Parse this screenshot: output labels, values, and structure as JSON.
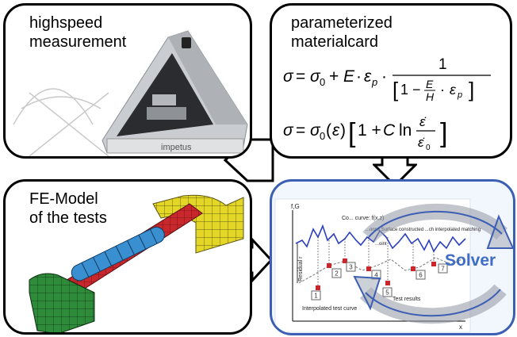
{
  "panels": {
    "measurement": {
      "title_line1": "highspeed",
      "title_line2": "measurement",
      "device_label": "impetus"
    },
    "materialcard": {
      "title_line1": "parameterized",
      "title_line2": "materialcard"
    },
    "fe_model": {
      "title_line1": "FE-Model",
      "title_line2": "of the tests"
    },
    "solver": {
      "label": "Solver",
      "inset": {
        "y_axis_label": "f,G",
        "residual_label": "Residual r",
        "curve_label": "Co... curve: f(x,z)",
        "surface_label": "...onse Surface constructed ...ch interpolated matching",
        "point_label": "...oint",
        "interpolated_label": "Interpolated test curve",
        "results_label": "Test results",
        "points": [
          "1",
          "2",
          "3",
          "4",
          "5",
          "6",
          "7"
        ],
        "x_axis_label": "x"
      }
    }
  },
  "colors": {
    "panel_border": "#000000",
    "solver_border": "#3c5fb4",
    "solver_text": "#3f6cc4",
    "model_green": "#2e8b3a",
    "model_red": "#c8272c",
    "model_blue": "#3a8fd0",
    "model_yellow": "#e3d626"
  }
}
